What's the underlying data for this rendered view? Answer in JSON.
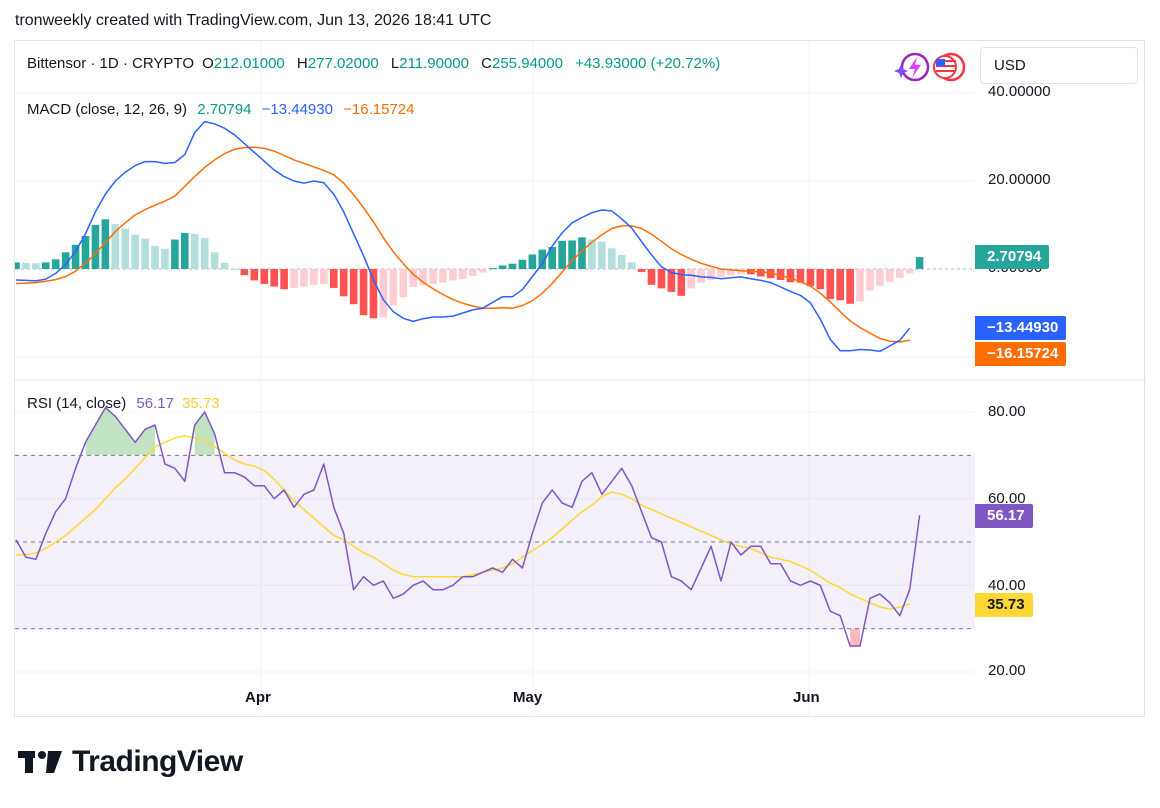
{
  "header": {
    "text": "tronweekly created with TradingView.com, Jun 13, 2026 18:41 UTC"
  },
  "symbol_bar": {
    "symbol": "Bittensor · 1D · CRYPTO",
    "open_label": "O",
    "open": "212.01000",
    "high_label": "H",
    "high": "277.02000",
    "low_label": "L",
    "low": "211.90000",
    "close_label": "C",
    "close": "255.94000",
    "change": "+43.93000 (+20.72%)",
    "currency": "USD"
  },
  "colors": {
    "macd_line": "#2962ff",
    "signal_line": "#ff6d00",
    "hist_pos_strong": "#26a69a",
    "hist_pos_weak": "#b2dfdb",
    "hist_neg_strong": "#ff5252",
    "hist_neg_weak": "#ffcdd2",
    "rsi_line": "#7e57c2",
    "rsi_ma": "#fdd835",
    "positive_text": "#089981"
  },
  "macd_legend": {
    "title": "MACD (close, 12, 26, 9)",
    "hist": "2.70794",
    "macd": "−13.44930",
    "signal": "−16.15724"
  },
  "rsi_legend": {
    "title": "RSI (14, close)",
    "rsi": "56.17",
    "ma": "35.73"
  },
  "price_scale": {
    "macd_ticks": [
      "40.00000",
      "20.00000",
      "0.00000"
    ],
    "rsi_ticks": [
      "80.00",
      "60.00",
      "40.00",
      "20.00"
    ]
  },
  "time_axis": {
    "labels": [
      "Apr",
      "May",
      "Jun"
    ]
  },
  "pills": {
    "hist": "2.70794",
    "macd": "−13.44930",
    "signal": "−16.15724",
    "rsi": "56.17",
    "rsi_ma": "35.73"
  },
  "footer": {
    "brand": "TradingView"
  },
  "chart_data": [
    {
      "type": "line",
      "title": "MACD (close, 12, 26, 9)",
      "x_start": "2026-03-05",
      "x_labels": [
        "Apr",
        "May",
        "Jun"
      ],
      "ylim": [
        -20,
        40
      ],
      "series": [
        {
          "name": "MACD",
          "values": [
            -2.5,
            -2.6,
            -2.7,
            -2.3,
            -1,
            1,
            4,
            8,
            13,
            17,
            20,
            22,
            23.5,
            24.4,
            24.4,
            24,
            24.2,
            26,
            31,
            33.5,
            33,
            32,
            30.5,
            28.5,
            26.5,
            24.5,
            22.5,
            21,
            20,
            19.5,
            20,
            19.6,
            17,
            13,
            8,
            3,
            -2.5,
            -7,
            -9.7,
            -11.2,
            -11.9,
            -11.3,
            -10.9,
            -10.9,
            -10.7,
            -10,
            -9.3,
            -8.9,
            -7.6,
            -6.3,
            -6.3,
            -4.7,
            -1.7,
            1.2,
            5.2,
            8.2,
            10.5,
            11.7,
            12.8,
            13.4,
            13.2,
            11.4,
            9.3,
            6.2,
            3.2,
            0.5,
            -0.8,
            -1.3,
            -1.4,
            -1.8,
            -1.9,
            -2.2,
            -2,
            -1.8,
            -2.2,
            -2.6,
            -3.1,
            -4.1,
            -5.1,
            -6,
            -7.7,
            -11.4,
            -16,
            -18.6,
            -18.6,
            -18.3,
            -18.4,
            -18.7,
            -17.5,
            -16.2,
            -13.45
          ]
        },
        {
          "name": "Signal",
          "values": [
            -3.3,
            -3.2,
            -3.1,
            -2.8,
            -2.4,
            -1.7,
            -0.5,
            1.3,
            3.5,
            6,
            8.5,
            10.5,
            12.3,
            13.5,
            14.5,
            15.4,
            16.6,
            18.8,
            21,
            23.1,
            24.8,
            26.2,
            27.2,
            27.6,
            27.7,
            27.4,
            26.8,
            25.8,
            24.8,
            24,
            23.2,
            22.4,
            21.4,
            19.5,
            16.9,
            13.9,
            10.7,
            7.1,
            3.9,
            1.2,
            -1.2,
            -3,
            -4.5,
            -5.8,
            -6.9,
            -7.8,
            -8.4,
            -8.9,
            -8.9,
            -8.8,
            -8.9,
            -8.3,
            -7.2,
            -5.5,
            -3.3,
            -0.7,
            1.9,
            4.1,
            6.1,
            7.8,
            9.2,
            9.8,
            9.8,
            9.2,
            7.9,
            6.3,
            4.6,
            3.3,
            2.2,
            1.3,
            0.6,
            0,
            -0.2,
            -0.4,
            -0.5,
            -0.6,
            -0.9,
            -1.5,
            -2.1,
            -2.9,
            -3.9,
            -5.5,
            -7.5,
            -9.7,
            -11.8,
            -13.3,
            -14.6,
            -15.8,
            -16.4,
            -16.6,
            -16.16
          ]
        },
        {
          "name": "Histogram",
          "values": [
            1.5,
            1.4,
            1.3,
            1.5,
            2.2,
            3.8,
            5.5,
            7.5,
            10,
            11.3,
            10.2,
            9.2,
            7.8,
            6.9,
            5.2,
            4.6,
            6.7,
            8.2,
            8,
            7,
            3.8,
            1.4,
            0,
            -1.4,
            -2.6,
            -3.4,
            -4,
            -4.6,
            -4.3,
            -4,
            -3.6,
            -3.4,
            -4.3,
            -6.2,
            -8,
            -10.5,
            -11.2,
            -11,
            -8.3,
            -6.4,
            -4.1,
            -3.7,
            -3.4,
            -3.1,
            -2.6,
            -2.3,
            -1.6,
            -0.8,
            0.2,
            0.8,
            1.2,
            2.1,
            3.3,
            4.4,
            5,
            6.4,
            6.5,
            7.2,
            6.7,
            6.2,
            4.7,
            3.2,
            1.5,
            -0.7,
            -3.6,
            -4.4,
            -5.2,
            -6.1,
            -4.4,
            -3.1,
            -2.5,
            -1.8,
            -1.5,
            -1.2,
            -1.2,
            -1.7,
            -2.1,
            -2.5,
            -3,
            -3.1,
            -3.9,
            -4.6,
            -6.8,
            -7.1,
            -7.9,
            -7.4,
            -4.9,
            -3.8,
            -2.9,
            -2,
            -1,
            2.7
          ]
        }
      ]
    },
    {
      "type": "line",
      "title": "RSI (14, close)",
      "x_start": "2026-03-05",
      "x_labels": [
        "Apr",
        "May",
        "Jun"
      ],
      "ylim": [
        20,
        80
      ],
      "levels": [
        70,
        50,
        30
      ],
      "series": [
        {
          "name": "RSI",
          "values": [
            50.5,
            46.5,
            46,
            52,
            57,
            60,
            67,
            73,
            77,
            81,
            79,
            76,
            73,
            76,
            77,
            68,
            67,
            64,
            77,
            80,
            75,
            66,
            66,
            65,
            63,
            63,
            60,
            62,
            58,
            61,
            62,
            68,
            58,
            52,
            39,
            42,
            40,
            41,
            37,
            38,
            40,
            41,
            39,
            39,
            40,
            42,
            42,
            43,
            44,
            43,
            46,
            44,
            52,
            59,
            62,
            59,
            58,
            64,
            66,
            61,
            64,
            67,
            63,
            57,
            51,
            50,
            42,
            41,
            39,
            44,
            49,
            41,
            50,
            47,
            49,
            49,
            45,
            45,
            41,
            40,
            41,
            40,
            34,
            33,
            26,
            26,
            37,
            38,
            36,
            33,
            39,
            56.17
          ]
        },
        {
          "name": "RSI-based MA",
          "values": [
            47,
            47,
            47.5,
            48.5,
            50,
            51.5,
            53.5,
            55.5,
            57.5,
            60,
            62.5,
            64.5,
            67,
            69.5,
            72,
            73,
            74,
            74.5,
            74,
            73.5,
            72,
            70.5,
            69,
            68,
            67.5,
            66.5,
            64.5,
            62,
            59.5,
            57.5,
            55.5,
            53.5,
            51.5,
            50.5,
            49,
            47.5,
            46.5,
            45,
            43.5,
            42.5,
            42,
            42,
            42,
            42,
            42,
            42,
            42.5,
            43,
            43.5,
            44,
            45,
            46.5,
            48,
            49.5,
            51,
            53,
            55,
            57,
            58.5,
            60.5,
            61.5,
            61,
            60,
            58.5,
            57.5,
            56.5,
            55.5,
            54.5,
            53.5,
            52.5,
            51.5,
            50.5,
            49.5,
            49,
            48.5,
            47.5,
            46.5,
            46,
            45.5,
            44.5,
            43.5,
            42,
            40.5,
            39.5,
            38,
            37,
            36,
            35,
            34.5,
            35,
            35.73
          ]
        }
      ]
    }
  ]
}
